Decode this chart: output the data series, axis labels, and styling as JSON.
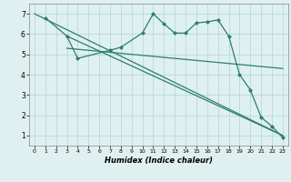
{
  "bg_color": "#dff0f0",
  "grid_color": "#b8dada",
  "line_color": "#2d7d6e",
  "xlabel": "Humidex (Indice chaleur)",
  "xlim": [
    -0.5,
    23.5
  ],
  "ylim": [
    0.5,
    7.5
  ],
  "xticks": [
    0,
    1,
    2,
    3,
    4,
    5,
    6,
    7,
    8,
    9,
    10,
    11,
    12,
    13,
    14,
    15,
    16,
    17,
    18,
    19,
    20,
    21,
    22,
    23
  ],
  "yticks": [
    1,
    2,
    3,
    4,
    5,
    6,
    7
  ],
  "line1": {
    "x": [
      0,
      23
    ],
    "y": [
      7.0,
      1.0
    ]
  },
  "line2": {
    "x": [
      1,
      3,
      4,
      7,
      8,
      10,
      11,
      12,
      13,
      14,
      15,
      16,
      17,
      18,
      19,
      20,
      21,
      22,
      23
    ],
    "y": [
      6.8,
      5.9,
      4.8,
      5.2,
      5.35,
      6.05,
      7.0,
      6.5,
      6.05,
      6.05,
      6.55,
      6.6,
      6.7,
      5.9,
      4.0,
      3.25,
      1.9,
      1.45,
      0.9
    ]
  },
  "line3": {
    "x": [
      3,
      23
    ],
    "y": [
      5.9,
      1.0
    ]
  },
  "line4": {
    "x": [
      3,
      23
    ],
    "y": [
      5.3,
      4.3
    ]
  }
}
